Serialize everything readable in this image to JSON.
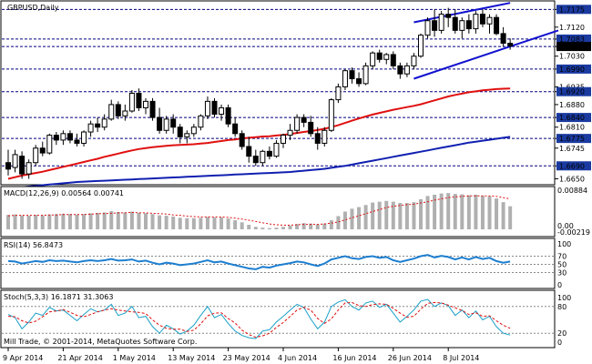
{
  "main": {
    "symbol_title": "GBPUSD,Daily",
    "price_labels": [
      "1.7175",
      "1.7120",
      "1.7083",
      "1.7060",
      "1.7030",
      "1.6990",
      "1.6935",
      "1.6920",
      "1.6880",
      "1.6840",
      "1.6810",
      "1.6775",
      "1.6745",
      "1.6690",
      "1.6650"
    ],
    "highlighted_levels": [
      "1.7175",
      "1.7083",
      "1.7060",
      "1.6990",
      "1.6920",
      "1.6840",
      "1.6775",
      "1.6690"
    ],
    "current_price_label": "1.7060",
    "colors": {
      "bull_candle": "#ffffff",
      "bear_candle": "#000000",
      "ma_red": "#e01010",
      "ma_blue": "#1020b0",
      "channel": "#1010d0",
      "level_line": "#000080",
      "highlight_bg": "#1a3aa0"
    }
  },
  "macd": {
    "title": "MACD(12,26,9) 0.00564 0.00741",
    "scale_labels": [
      "0.00884",
      "0.00",
      "-0.00219"
    ]
  },
  "rsi": {
    "title": "RSI(14) 56.8473",
    "scale_labels": [
      "100",
      "70",
      "50",
      "30",
      "0"
    ]
  },
  "stoch": {
    "title": "Stoch(5,3,3) 16.1871 31.3063",
    "scale_labels": [
      "100",
      "80",
      "20",
      "0"
    ]
  },
  "copyright": "Mill Trade, © 2001-2014, MetaQuotes Software Corp.",
  "time_axis": [
    "9 Apr 2014",
    "21 Apr 2014",
    "1 May 2014",
    "13 May 2014",
    "23 May 2014",
    "4 Jun 2014",
    "16 Jun 2014",
    "26 Jun 2014",
    "8 Jul 2014"
  ],
  "chart_data": {
    "type": "candlestick",
    "title": "GBPUSD,Daily",
    "ylim": [
      1.664,
      1.719
    ],
    "candles": [
      [
        1.67,
        1.674,
        1.666,
        1.668
      ],
      [
        1.6685,
        1.674,
        1.667,
        1.6725
      ],
      [
        1.672,
        1.6735,
        1.665,
        1.6665
      ],
      [
        1.6665,
        1.671,
        1.665,
        1.67
      ],
      [
        1.67,
        1.6755,
        1.669,
        1.6745
      ],
      [
        1.6745,
        1.6765,
        1.672,
        1.673
      ],
      [
        1.673,
        1.679,
        1.6725,
        1.6785
      ],
      [
        1.6785,
        1.6795,
        1.6755,
        1.677
      ],
      [
        1.677,
        1.68,
        1.6755,
        1.679
      ],
      [
        1.679,
        1.68,
        1.676,
        1.677
      ],
      [
        1.677,
        1.679,
        1.675,
        1.676
      ],
      [
        1.676,
        1.68,
        1.675,
        1.6795
      ],
      [
        1.6795,
        1.683,
        1.678,
        1.682
      ],
      [
        1.682,
        1.684,
        1.6795,
        1.681
      ],
      [
        1.681,
        1.685,
        1.68,
        1.6835
      ],
      [
        1.6835,
        1.6895,
        1.683,
        1.688
      ],
      [
        1.688,
        1.689,
        1.6835,
        1.6845
      ],
      [
        1.6845,
        1.688,
        1.683,
        1.686
      ],
      [
        1.686,
        1.6925,
        1.6855,
        1.6915
      ],
      [
        1.6915,
        1.693,
        1.686,
        1.687
      ],
      [
        1.687,
        1.69,
        1.685,
        1.689
      ],
      [
        1.689,
        1.69,
        1.683,
        1.684
      ],
      [
        1.684,
        1.687,
        1.679,
        1.68
      ],
      [
        1.68,
        1.6845,
        1.679,
        1.6835
      ],
      [
        1.6835,
        1.685,
        1.679,
        1.681
      ],
      [
        1.681,
        1.682,
        1.676,
        1.678
      ],
      [
        1.678,
        1.68,
        1.676,
        1.679
      ],
      [
        1.679,
        1.682,
        1.678,
        1.681
      ],
      [
        1.681,
        1.685,
        1.68,
        1.6845
      ],
      [
        1.6845,
        1.6905,
        1.6835,
        1.689
      ],
      [
        1.689,
        1.69,
        1.684,
        1.685
      ],
      [
        1.685,
        1.688,
        1.683,
        1.687
      ],
      [
        1.687,
        1.688,
        1.681,
        1.682
      ],
      [
        1.682,
        1.684,
        1.678,
        1.679
      ],
      [
        1.679,
        1.68,
        1.674,
        1.675
      ],
      [
        1.675,
        1.678,
        1.67,
        1.672
      ],
      [
        1.672,
        1.674,
        1.669,
        1.67
      ],
      [
        1.67,
        1.674,
        1.669,
        1.6735
      ],
      [
        1.6735,
        1.675,
        1.671,
        1.672
      ],
      [
        1.672,
        1.677,
        1.6715,
        1.676
      ],
      [
        1.676,
        1.679,
        1.6745,
        1.6785
      ],
      [
        1.6785,
        1.682,
        1.677,
        1.68
      ],
      [
        1.68,
        1.685,
        1.679,
        1.684
      ],
      [
        1.684,
        1.685,
        1.681,
        1.6825
      ],
      [
        1.6825,
        1.6845,
        1.678,
        1.679
      ],
      [
        1.679,
        1.681,
        1.674,
        1.676
      ],
      [
        1.676,
        1.681,
        1.675,
        1.68
      ],
      [
        1.68,
        1.69,
        1.6795,
        1.6895
      ],
      [
        1.6895,
        1.6945,
        1.6885,
        1.6935
      ],
      [
        1.6935,
        1.699,
        1.6925,
        1.6985
      ],
      [
        1.6985,
        1.6995,
        1.6945,
        1.696
      ],
      [
        1.696,
        1.698,
        1.6935,
        1.6945
      ],
      [
        1.6945,
        1.701,
        1.694,
        1.7
      ],
      [
        1.7,
        1.7045,
        1.699,
        1.704
      ],
      [
        1.704,
        1.705,
        1.701,
        1.702
      ],
      [
        1.702,
        1.704,
        1.7005,
        1.7035
      ],
      [
        1.7035,
        1.7045,
        1.699,
        1.7
      ],
      [
        1.7,
        1.701,
        1.696,
        1.6975
      ],
      [
        1.6975,
        1.701,
        1.6965,
        1.7
      ],
      [
        1.7,
        1.704,
        1.699,
        1.703
      ],
      [
        1.703,
        1.71,
        1.7025,
        1.7095
      ],
      [
        1.7095,
        1.715,
        1.7085,
        1.714
      ],
      [
        1.714,
        1.7175,
        1.709,
        1.711
      ],
      [
        1.711,
        1.717,
        1.71,
        1.716
      ],
      [
        1.716,
        1.718,
        1.712,
        1.715
      ],
      [
        1.715,
        1.7175,
        1.71,
        1.711
      ],
      [
        1.711,
        1.715,
        1.7085,
        1.714
      ],
      [
        1.714,
        1.716,
        1.71,
        1.7115
      ],
      [
        1.7115,
        1.717,
        1.71,
        1.716
      ],
      [
        1.716,
        1.7175,
        1.712,
        1.713
      ],
      [
        1.713,
        1.716,
        1.71,
        1.715
      ],
      [
        1.715,
        1.716,
        1.7095,
        1.71
      ],
      [
        1.71,
        1.712,
        1.706,
        1.707
      ],
      [
        1.707,
        1.7085,
        1.705,
        1.7062
      ]
    ],
    "ma_red": [
      1.665,
      1.6655,
      1.666,
      1.6664,
      1.6668,
      1.6672,
      1.6677,
      1.6682,
      1.6687,
      1.6692,
      1.6697,
      1.6702,
      1.6707,
      1.6712,
      1.6718,
      1.6723,
      1.6728,
      1.6733,
      1.6738,
      1.6742,
      1.6745,
      1.6748,
      1.675,
      1.6752,
      1.6754,
      1.6755,
      1.6756,
      1.6757,
      1.6759,
      1.6761,
      1.6764,
      1.6767,
      1.677,
      1.6772,
      1.6775,
      1.6777,
      1.6779,
      1.6781,
      1.6782,
      1.6784,
      1.6786,
      1.6789,
      1.6792,
      1.6795,
      1.6798,
      1.6801,
      1.6805,
      1.681,
      1.6816,
      1.6823,
      1.683,
      1.6837,
      1.6843,
      1.6849,
      1.6854,
      1.6859,
      1.6864,
      1.6868,
      1.6872,
      1.6876,
      1.6881,
      1.6887,
      1.6893,
      1.6899,
      1.6905,
      1.691,
      1.6914,
      1.6918,
      1.6921,
      1.6924,
      1.6926,
      1.6928,
      1.6929,
      1.693
    ],
    "ma_blue": [
      1.662,
      1.6622,
      1.6624,
      1.6626,
      1.6628,
      1.663,
      1.6632,
      1.6634,
      1.6636,
      1.6638,
      1.664,
      1.6641,
      1.6642,
      1.6643,
      1.6644,
      1.6645,
      1.6646,
      1.6647,
      1.6648,
      1.6649,
      1.665,
      1.6651,
      1.6652,
      1.6653,
      1.6654,
      1.6655,
      1.6656,
      1.6657,
      1.6658,
      1.6659,
      1.666,
      1.6661,
      1.6662,
      1.6663,
      1.6664,
      1.6665,
      1.6666,
      1.6667,
      1.6668,
      1.6669,
      1.667,
      1.6671,
      1.6673,
      1.6675,
      1.6677,
      1.6679,
      1.6681,
      1.6684,
      1.6687,
      1.669,
      1.6694,
      1.6698,
      1.6702,
      1.6706,
      1.671,
      1.6714,
      1.6718,
      1.6722,
      1.6726,
      1.673,
      1.6734,
      1.6738,
      1.6742,
      1.6746,
      1.675,
      1.6754,
      1.6758,
      1.6762,
      1.6765,
      1.6768,
      1.6771,
      1.6774,
      1.6777,
      1.678
    ],
    "channel_upper": [
      [
        59,
        1.7135
      ],
      [
        73,
        1.7195
      ]
    ],
    "channel_lower": [
      [
        59,
        1.696
      ],
      [
        73,
        1.706
      ],
      [
        80,
        1.711
      ]
    ],
    "macd_hist": [
      0.0035,
      0.0036,
      0.0034,
      0.0033,
      0.0035,
      0.0034,
      0.0036,
      0.0037,
      0.0038,
      0.0037,
      0.0036,
      0.0037,
      0.0039,
      0.004,
      0.0041,
      0.0044,
      0.0042,
      0.0041,
      0.0043,
      0.004,
      0.0039,
      0.0037,
      0.0034,
      0.0033,
      0.0031,
      0.0028,
      0.0027,
      0.0027,
      0.0028,
      0.003,
      0.0029,
      0.0029,
      0.0026,
      0.0022,
      0.0017,
      0.0011,
      0.0006,
      0.0004,
      0.0003,
      0.0004,
      0.0006,
      0.0009,
      0.0013,
      0.0015,
      0.0014,
      0.0012,
      0.0014,
      0.0022,
      0.0032,
      0.0043,
      0.005,
      0.0054,
      0.0059,
      0.0065,
      0.0067,
      0.0069,
      0.0067,
      0.0064,
      0.0064,
      0.0066,
      0.0073,
      0.0081,
      0.0084,
      0.0087,
      0.0088,
      0.0086,
      0.0085,
      0.0083,
      0.0084,
      0.0081,
      0.008,
      0.0075,
      0.0066,
      0.0056
    ],
    "macd_signal": [
      0.0033,
      0.0034,
      0.0034,
      0.0034,
      0.0034,
      0.0034,
      0.0035,
      0.0035,
      0.0036,
      0.0036,
      0.0036,
      0.0036,
      0.0037,
      0.0038,
      0.0038,
      0.0039,
      0.004,
      0.004,
      0.0041,
      0.004,
      0.004,
      0.0039,
      0.0038,
      0.0037,
      0.0035,
      0.0034,
      0.0032,
      0.0031,
      0.003,
      0.003,
      0.003,
      0.003,
      0.0029,
      0.0027,
      0.0025,
      0.0022,
      0.0019,
      0.0016,
      0.0013,
      0.0011,
      0.001,
      0.001,
      0.0011,
      0.0012,
      0.0012,
      0.0012,
      0.0013,
      0.0015,
      0.0018,
      0.0023,
      0.0028,
      0.0033,
      0.0038,
      0.0043,
      0.0048,
      0.0053,
      0.0056,
      0.0058,
      0.006,
      0.0061,
      0.0064,
      0.0067,
      0.0071,
      0.0074,
      0.0077,
      0.0079,
      0.008,
      0.0081,
      0.0081,
      0.0081,
      0.0081,
      0.008,
      0.0077,
      0.0074
    ],
    "rsi": [
      58,
      57,
      52,
      55,
      58,
      56,
      60,
      58,
      59,
      57,
      55,
      58,
      60,
      58,
      60,
      63,
      59,
      60,
      62,
      57,
      59,
      54,
      50,
      54,
      52,
      48,
      50,
      52,
      56,
      60,
      55,
      57,
      52,
      48,
      44,
      40,
      38,
      44,
      42,
      47,
      50,
      53,
      57,
      55,
      50,
      46,
      52,
      62,
      66,
      70,
      65,
      63,
      68,
      70,
      66,
      68,
      60,
      56,
      60,
      64,
      70,
      73,
      67,
      71,
      68,
      62,
      67,
      62,
      68,
      63,
      66,
      58,
      54,
      57
    ],
    "stoch_k": [
      62,
      55,
      30,
      45,
      65,
      60,
      78,
      70,
      72,
      60,
      48,
      62,
      75,
      68,
      72,
      85,
      60,
      65,
      80,
      55,
      58,
      35,
      20,
      38,
      30,
      18,
      25,
      38,
      60,
      80,
      55,
      62,
      42,
      25,
      15,
      10,
      8,
      25,
      28,
      45,
      58,
      72,
      85,
      78,
      52,
      30,
      45,
      80,
      90,
      95,
      80,
      72,
      88,
      92,
      78,
      85,
      65,
      45,
      58,
      72,
      92,
      96,
      80,
      88,
      82,
      60,
      72,
      55,
      70,
      50,
      58,
      35,
      20,
      16
    ],
    "stoch_d": [
      58,
      57,
      48,
      43,
      47,
      57,
      68,
      70,
      73,
      67,
      60,
      57,
      62,
      68,
      72,
      75,
      72,
      70,
      68,
      67,
      64,
      50,
      38,
      31,
      29,
      29,
      24,
      27,
      41,
      59,
      65,
      66,
      53,
      43,
      27,
      17,
      11,
      14,
      20,
      33,
      44,
      58,
      72,
      78,
      72,
      53,
      42,
      52,
      72,
      88,
      89,
      82,
      80,
      84,
      86,
      85,
      76,
      65,
      56,
      58,
      74,
      87,
      89,
      88,
      83,
      77,
      71,
      62,
      66,
      58,
      59,
      48,
      38,
      31
    ]
  }
}
